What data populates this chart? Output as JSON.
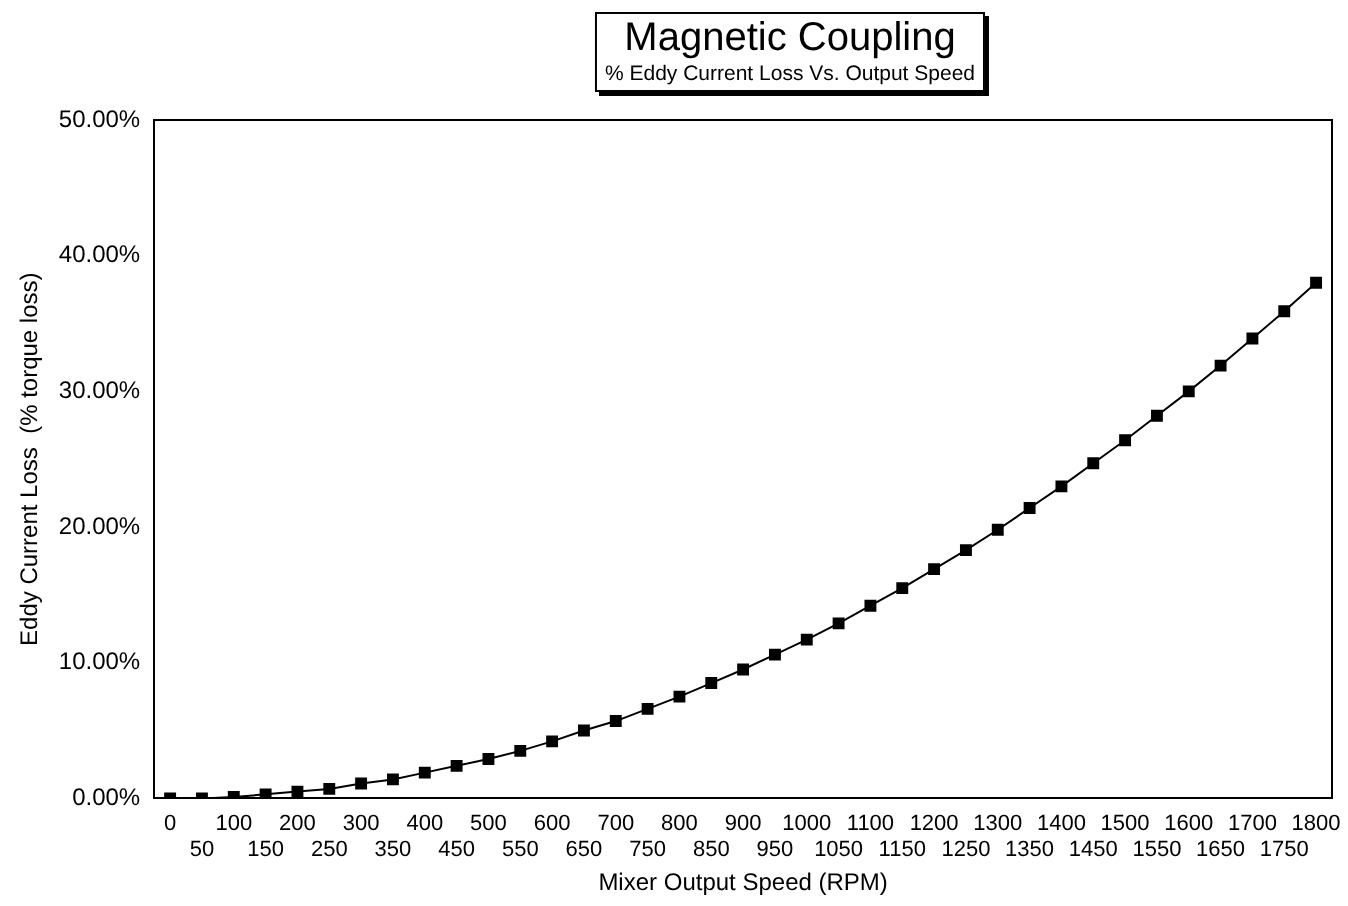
{
  "chart_data": {
    "type": "line",
    "title": "Magnetic Coupling",
    "subtitle": "% Eddy Current Loss Vs. Output Speed",
    "xlabel": "Mixer Output Speed (RPM)",
    "ylabel": "Eddy Current Loss  (% torque loss)",
    "categories": [
      "0",
      "50",
      "100",
      "150",
      "200",
      "250",
      "300",
      "350",
      "400",
      "450",
      "500",
      "550",
      "600",
      "650",
      "700",
      "750",
      "800",
      "850",
      "900",
      "950",
      "1000",
      "1050",
      "1100",
      "1150",
      "1200",
      "1250",
      "1300",
      "1350",
      "1400",
      "1450",
      "1500",
      "1550",
      "1600",
      "1650",
      "1700",
      "1750",
      "1800"
    ],
    "series": [
      {
        "color": "#000000",
        "values": [
          0,
          0,
          0.1,
          0.3,
          0.5,
          0.7,
          1.1,
          1.4,
          1.9,
          2.4,
          2.9,
          3.5,
          4.2,
          5.0,
          5.7,
          6.6,
          7.5,
          8.5,
          9.5,
          10.6,
          11.7,
          12.9,
          14.2,
          15.5,
          16.9,
          18.3,
          19.8,
          21.4,
          23.0,
          24.7,
          26.4,
          28.2,
          30.0,
          31.9,
          33.9,
          35.9,
          38.0
        ]
      }
    ],
    "ylim": [
      0,
      50
    ],
    "yticks": [
      {
        "value": 0,
        "label": "0.00%"
      },
      {
        "value": 10,
        "label": "10.00%"
      },
      {
        "value": 20,
        "label": "20.00%"
      },
      {
        "value": 30,
        "label": "30.00%"
      },
      {
        "value": 40,
        "label": "40.00%"
      },
      {
        "value": 50,
        "label": "50.00%"
      }
    ],
    "grid": false,
    "legend": false,
    "marker": "square",
    "line_style": "solid"
  }
}
